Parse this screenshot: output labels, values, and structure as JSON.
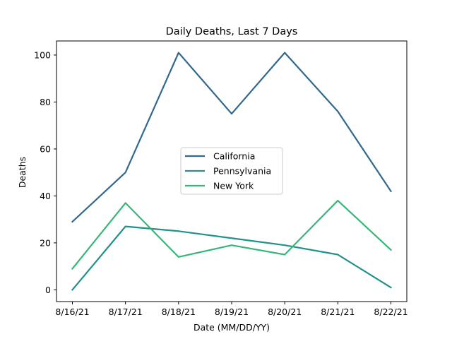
{
  "chart_data": {
    "type": "line",
    "title": "Daily Deaths, Last 7 Days",
    "xlabel": "Date (MM/DD/YY)",
    "ylabel": "Deaths",
    "categories": [
      "8/16/21",
      "8/17/21",
      "8/18/21",
      "8/19/21",
      "8/20/21",
      "8/21/21",
      "8/22/21"
    ],
    "ylim": [
      -5,
      106
    ],
    "yticks": [
      0,
      20,
      40,
      60,
      80,
      100
    ],
    "grid": false,
    "legend_position": "center",
    "series": [
      {
        "name": "California",
        "color": "#31688e",
        "values": [
          29,
          50,
          101,
          75,
          101,
          76,
          42
        ]
      },
      {
        "name": "Pennsylvania",
        "color": "#21918c",
        "values": [
          0,
          27,
          25,
          22,
          19,
          15,
          1
        ]
      },
      {
        "name": "New York",
        "color": "#35b779",
        "values": [
          9,
          37,
          14,
          19,
          15,
          38,
          17
        ]
      }
    ]
  }
}
